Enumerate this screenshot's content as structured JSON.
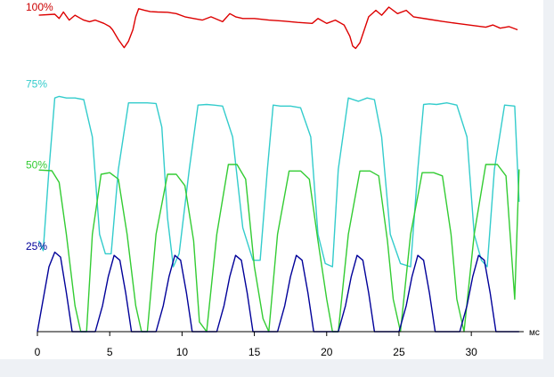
{
  "chart_data": {
    "type": "line",
    "title": "",
    "xlabel": "мс",
    "ylabel": "",
    "xlim": [
      0,
      33.5
    ],
    "ylim": [
      0,
      100
    ],
    "grid": false,
    "x_ticks": [
      0,
      5,
      10,
      15,
      20,
      25,
      30
    ],
    "level_labels": [
      {
        "text": "100%",
        "value": 100,
        "color": "#cc0000"
      },
      {
        "text": "75%",
        "value": 75,
        "color": "#33cccc"
      },
      {
        "text": "50%",
        "value": 50,
        "color": "#33cc33"
      },
      {
        "text": "25%",
        "value": 25,
        "color": "#000099"
      }
    ],
    "series": [
      {
        "color": "#dd0000",
        "x": [
          0.1,
          1.2,
          1.5,
          1.8,
          2.2,
          2.6,
          3.0,
          3.2,
          3.6,
          4.0,
          4.6,
          5.0,
          5.2,
          5.6,
          6.0,
          6.3,
          6.6,
          6.8,
          7.0,
          7.4,
          7.8,
          8.3,
          9.0,
          9.6,
          10.2,
          10.8,
          11.4,
          12.0,
          12.8,
          13.3,
          13.7,
          14.2,
          15.0,
          16.0,
          17.0,
          18.0,
          19.0,
          19.4,
          19.6,
          20.0,
          20.6,
          21.2,
          21.6,
          21.8,
          22.0,
          22.3,
          22.6,
          22.9,
          23.4,
          23.8,
          24.3,
          24.9,
          25.5,
          26.0,
          27.0,
          28.0,
          29.0,
          30.0,
          31.0,
          31.5,
          32.0,
          32.6,
          33.2
        ],
        "y": [
          97.5,
          97.8,
          96.5,
          98.5,
          96.0,
          97.5,
          96.5,
          96.0,
          95.5,
          96.0,
          95.0,
          94.0,
          93.0,
          90.0,
          87.5,
          89.5,
          93.0,
          97.0,
          99.5,
          99.0,
          98.6,
          98.5,
          98.4,
          98.0,
          97.0,
          96.5,
          96.0,
          97.0,
          95.5,
          98.0,
          97.0,
          96.5,
          96.5,
          96.0,
          95.7,
          95.3,
          95.0,
          96.5,
          96.0,
          95.0,
          96.0,
          94.5,
          91.0,
          88.0,
          87.3,
          89.0,
          93.0,
          97.0,
          99.0,
          97.5,
          100.0,
          98.0,
          99.0,
          97.0,
          96.3,
          95.6,
          95.0,
          94.4,
          93.8,
          94.5,
          93.5,
          94.0,
          93.0
        ]
      },
      {
        "color": "#33cccc",
        "x": [
          0.1,
          0.4,
          0.8,
          1.2,
          1.5,
          2.0,
          2.6,
          3.2,
          3.8,
          4.3,
          4.7,
          5.1,
          5.6,
          6.3,
          7.0,
          7.6,
          8.2,
          8.6,
          9.0,
          9.4,
          9.8,
          10.5,
          11.1,
          11.7,
          12.2,
          12.8,
          13.5,
          14.2,
          14.9,
          15.4,
          15.9,
          16.3,
          16.8,
          17.5,
          18.2,
          18.9,
          19.4,
          19.9,
          20.4,
          20.8,
          21.5,
          22.2,
          22.8,
          23.3,
          23.8,
          24.4,
          25.1,
          25.8,
          26.3,
          26.7,
          27.1,
          27.6,
          28.3,
          29.0,
          29.7,
          30.2,
          30.7,
          31.1,
          31.6,
          32.3,
          33.0,
          33.3
        ],
        "y": [
          28,
          25,
          50,
          72,
          72.5,
          72,
          72,
          71.5,
          60,
          30,
          24,
          24,
          50,
          70.5,
          70.5,
          70.5,
          70.3,
          63,
          35,
          20,
          24,
          50,
          69.8,
          70,
          69.8,
          69.5,
          60,
          32,
          22,
          22,
          50,
          69.8,
          69.5,
          69.5,
          69,
          60,
          30,
          21,
          20,
          50,
          72,
          71,
          72,
          71.5,
          60,
          30,
          21,
          20,
          50,
          70,
          70.2,
          70,
          70.5,
          69.8,
          60,
          30,
          22,
          20,
          50,
          69.8,
          69.5,
          40
        ]
      },
      {
        "color": "#33cc33",
        "x": [
          0.1,
          1.0,
          1.5,
          2.0,
          2.6,
          3.0,
          3.4,
          3.8,
          4.4,
          5.0,
          5.6,
          6.2,
          6.8,
          7.2,
          7.6,
          8.2,
          9.0,
          9.6,
          10.2,
          10.8,
          11.2,
          11.7,
          12.4,
          13.2,
          13.8,
          14.4,
          15.0,
          15.6,
          16.0,
          16.6,
          17.4,
          18.2,
          18.8,
          19.4,
          20.0,
          20.4,
          20.8,
          21.5,
          22.3,
          23.0,
          23.6,
          24.2,
          24.6,
          25.1,
          25.8,
          26.6,
          27.4,
          28.0,
          28.6,
          29.0,
          29.5,
          30.2,
          31.0,
          31.8,
          32.4,
          33.0,
          33.3
        ],
        "y": [
          49.8,
          49.6,
          46,
          30,
          8,
          0,
          0,
          30,
          48.5,
          49,
          47,
          30,
          8,
          0,
          0,
          30,
          48.5,
          48.5,
          45,
          28,
          3,
          0,
          30,
          51.5,
          51.5,
          47,
          20,
          4,
          0,
          30,
          49.5,
          49.5,
          47,
          28,
          10,
          0,
          0,
          30,
          49.5,
          49.5,
          48,
          28,
          10,
          0,
          30,
          49,
          49,
          48,
          30,
          10,
          0,
          30,
          51.5,
          51.5,
          48,
          10,
          50
        ]
      },
      {
        "color": "#000099",
        "x": [
          0.0,
          0.4,
          0.8,
          1.2,
          1.6,
          2.0,
          2.4,
          2.8,
          3.4,
          4.0,
          4.5,
          4.9,
          5.3,
          5.7,
          6.1,
          6.5,
          7.0,
          7.6,
          8.2,
          8.7,
          9.1,
          9.5,
          9.9,
          10.3,
          10.7,
          11.2,
          11.8,
          12.4,
          12.9,
          13.3,
          13.7,
          14.1,
          14.5,
          14.9,
          15.4,
          16.0,
          16.6,
          17.1,
          17.5,
          17.9,
          18.3,
          18.7,
          19.1,
          19.6,
          20.2,
          20.8,
          21.3,
          21.7,
          22.1,
          22.5,
          22.9,
          23.3,
          23.8,
          24.4,
          25.0,
          25.5,
          25.9,
          26.3,
          26.7,
          27.1,
          27.5,
          28.0,
          28.6,
          29.2,
          29.7,
          30.1,
          30.5,
          30.9,
          31.3,
          31.7,
          32.2,
          33.3
        ],
        "y": [
          0,
          10,
          20,
          24.5,
          23,
          12,
          0,
          0,
          0,
          0,
          8,
          17,
          23.5,
          22,
          12,
          0,
          0,
          0,
          0,
          8,
          17,
          23.5,
          22,
          12,
          0,
          0,
          0,
          0,
          8,
          17,
          23.5,
          22,
          12,
          0,
          0,
          0,
          0,
          8,
          17,
          23.5,
          22,
          12,
          0,
          0,
          0,
          0,
          8,
          17,
          23.5,
          22,
          12,
          0,
          0,
          0,
          0,
          8,
          17,
          23.5,
          22,
          12,
          0,
          0,
          0,
          0,
          8,
          17,
          23.5,
          22,
          12,
          0,
          0,
          0
        ]
      }
    ]
  }
}
